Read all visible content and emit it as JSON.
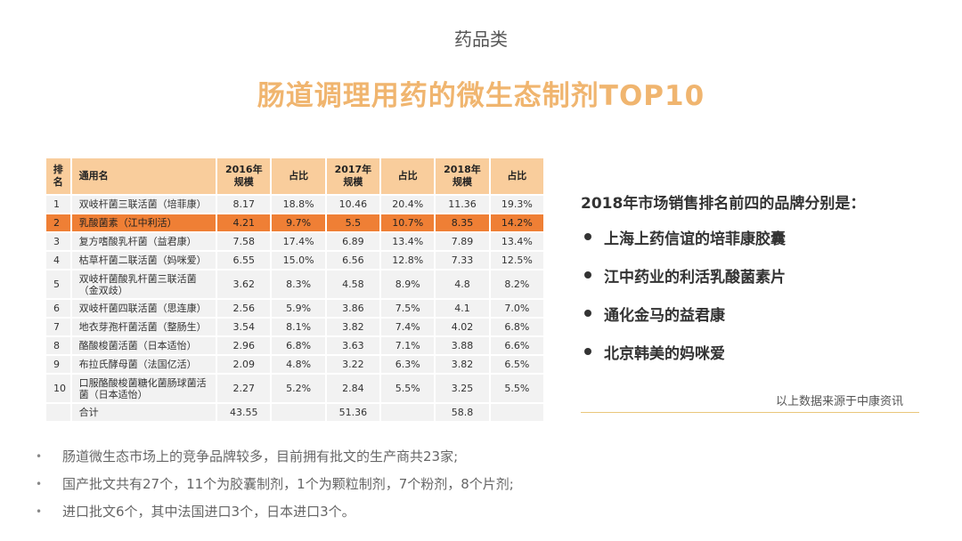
{
  "header": {
    "category": "药品类",
    "title": "肠道调理用药的微生态制剂TOP10"
  },
  "table": {
    "headers": {
      "rank": "排名",
      "name": "通用名",
      "y2016": "2016年规模",
      "share2016": "占比",
      "y2017": "2017年规模",
      "share2017": "占比",
      "y2018": "2018年规模",
      "share2018": "占比"
    },
    "rows": [
      {
        "rank": "1",
        "name": "双岐杆菌三联活菌（培菲康）",
        "y2016": "8.17",
        "share2016": "18.8%",
        "y2017": "10.46",
        "share2017": "20.4%",
        "y2018": "11.36",
        "share2018": "19.3%"
      },
      {
        "rank": "2",
        "name": "乳酸菌素（江中利活）",
        "y2016": "4.21",
        "share2016": "9.7%",
        "y2017": "5.5",
        "share2017": "10.7%",
        "y2018": "8.35",
        "share2018": "14.2%"
      },
      {
        "rank": "3",
        "name": "复方嗜酸乳杆菌（益君康）",
        "y2016": "7.58",
        "share2016": "17.4%",
        "y2017": "6.89",
        "share2017": "13.4%",
        "y2018": "7.89",
        "share2018": "13.4%"
      },
      {
        "rank": "4",
        "name": "枯草杆菌二联活菌（妈咪爱）",
        "y2016": "6.55",
        "share2016": "15.0%",
        "y2017": "6.56",
        "share2017": "12.8%",
        "y2018": "7.33",
        "share2018": "12.5%"
      },
      {
        "rank": "5",
        "name": "双岐杆菌酸乳杆菌三联活菌（金双歧）",
        "y2016": "3.62",
        "share2016": "8.3%",
        "y2017": "4.58",
        "share2017": "8.9%",
        "y2018": "4.8",
        "share2018": "8.2%"
      },
      {
        "rank": "6",
        "name": "双岐杆菌四联活菌（思连康）",
        "y2016": "2.56",
        "share2016": "5.9%",
        "y2017": "3.86",
        "share2017": "7.5%",
        "y2018": "4.1",
        "share2018": "7.0%"
      },
      {
        "rank": "7",
        "name": "地衣芽孢杆菌活菌（整肠生）",
        "y2016": "3.54",
        "share2016": "8.1%",
        "y2017": "3.82",
        "share2017": "7.4%",
        "y2018": "4.02",
        "share2018": "6.8%"
      },
      {
        "rank": "8",
        "name": "酪酸梭菌活菌（日本适怡）",
        "y2016": "2.96",
        "share2016": "6.8%",
        "y2017": "3.63",
        "share2017": "7.1%",
        "y2018": "3.88",
        "share2018": "6.6%"
      },
      {
        "rank": "9",
        "name": "布拉氏酵母菌（法国亿活）",
        "y2016": "2.09",
        "share2016": "4.8%",
        "y2017": "3.22",
        "share2017": "6.3%",
        "y2018": "3.82",
        "share2018": "6.5%"
      },
      {
        "rank": "10",
        "name": "口服酪酸梭菌糖化菌肠球菌活菌（日本适怡）",
        "y2016": "2.27",
        "share2016": "5.2%",
        "y2017": "2.84",
        "share2017": "5.5%",
        "y2018": "3.25",
        "share2018": "5.5%"
      }
    ],
    "total": {
      "label": "合计",
      "y2016": "43.55",
      "y2017": "51.36",
      "y2018": "58.8"
    }
  },
  "bullets": [
    "肠道微生态市场上的竞争品牌较多，目前拥有批文的生产商共23家;",
    "国产批文共有27个，11个为胶囊制剂，1个为颗粒制剂，7个粉剂，8个片剂;",
    "进口批文6个，其中法国进口3个，日本进口3个。"
  ],
  "right": {
    "heading": "2018年市场销售排名前四的品牌分别是：",
    "brands": [
      "上海上药信谊的培菲康胶囊",
      "江中药业的利活乳酸菌素片",
      "通化金马的益君康",
      "北京韩美的妈咪爱"
    ],
    "source": "以上数据来源于中康资讯"
  },
  "colors": {
    "title": "#f0b56f",
    "header_fill": "#f9cd9c",
    "highlight_row": "#ef7f35",
    "row_fill": "#f2f2f2",
    "divider": "#e9c77b"
  }
}
